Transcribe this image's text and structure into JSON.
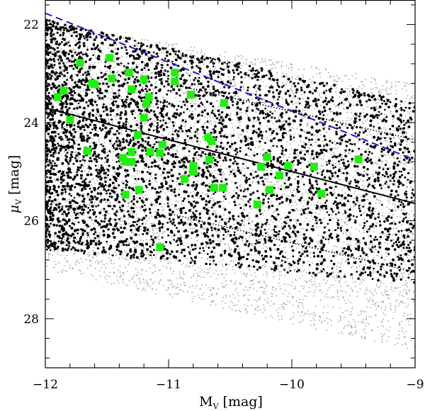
{
  "chart_data": {
    "type": "scatter",
    "title": "",
    "xlabel": "M",
    "xlabel_sub": "V",
    "xlabel_unit": " [mag]",
    "ylabel": "μ",
    "ylabel_sub": "V",
    "ylabel_unit": " [mag]",
    "xlim": [
      -12,
      -9
    ],
    "ylim": [
      29,
      21.5
    ],
    "y_inverted": true,
    "grid": false,
    "x_ticks": [
      -12,
      -11,
      -10,
      -9
    ],
    "x_tick_labels": [
      "−12",
      "−11",
      "−10",
      "−9"
    ],
    "y_ticks": [
      22,
      24,
      26,
      28
    ],
    "y_tick_labels": [
      "22",
      "24",
      "26",
      "28"
    ],
    "colors": {
      "model_grey": "#9a9a9a",
      "model_black": "#000000",
      "observed": "#22ee11",
      "dashed_line": "#1a1acc",
      "solid_line": "#000000"
    },
    "lines": [
      {
        "style": "dashed",
        "color": "#1a1acc",
        "x": [
          -12,
          -9
        ],
        "y": [
          21.77,
          24.76
        ]
      },
      {
        "style": "solid",
        "color": "#000000",
        "x": [
          -12,
          -9
        ],
        "y": [
          23.7,
          25.65
        ]
      },
      {
        "style": "dotted",
        "color": "#000000",
        "x": [
          -11,
          -9
        ],
        "y": [
          23.2,
          24.35
        ]
      },
      {
        "style": "dotted",
        "color": "#000000",
        "x": [
          -11,
          -9
        ],
        "y": [
          25.85,
          27.05
        ]
      }
    ],
    "model_regions": {
      "grey": {
        "x": [
          -12,
          -9
        ],
        "y_bright": [
          21.95,
          23.2
        ],
        "y_faint": [
          27.0,
          28.65
        ]
      },
      "black": {
        "x": [
          -12,
          -9
        ],
        "y_bright": [
          21.9,
          23.6
        ],
        "y_faint": [
          26.6,
          27.3
        ]
      }
    },
    "series": [
      {
        "marker": "square",
        "color": "#22ee11",
        "points": [
          [
            -11.72,
            22.78
          ],
          [
            -11.48,
            22.68
          ],
          [
            -11.62,
            23.2
          ],
          [
            -11.6,
            23.22
          ],
          [
            -11.46,
            23.1
          ],
          [
            -11.32,
            22.98
          ],
          [
            -11.2,
            23.12
          ],
          [
            -10.95,
            22.98
          ],
          [
            -10.95,
            23.16
          ],
          [
            -11.85,
            23.35
          ],
          [
            -11.9,
            23.48
          ],
          [
            -11.3,
            23.32
          ],
          [
            -11.16,
            23.48
          ],
          [
            -10.82,
            23.43
          ],
          [
            -11.18,
            23.62
          ],
          [
            -10.55,
            23.6
          ],
          [
            -11.8,
            23.95
          ],
          [
            -11.2,
            23.9
          ],
          [
            -11.25,
            24.25
          ],
          [
            -10.68,
            24.3
          ],
          [
            -10.65,
            24.38
          ],
          [
            -11.05,
            24.45
          ],
          [
            -11.66,
            24.58
          ],
          [
            -11.3,
            24.6
          ],
          [
            -11.15,
            24.6
          ],
          [
            -11.07,
            24.62
          ],
          [
            -11.37,
            24.72
          ],
          [
            -11.35,
            24.8
          ],
          [
            -11.3,
            24.8
          ],
          [
            -10.67,
            24.76
          ],
          [
            -10.8,
            24.88
          ],
          [
            -10.8,
            25.0
          ],
          [
            -10.2,
            24.7
          ],
          [
            -10.25,
            24.9
          ],
          [
            -10.03,
            24.88
          ],
          [
            -9.82,
            24.9
          ],
          [
            -9.46,
            24.75
          ],
          [
            -10.87,
            25.15
          ],
          [
            -10.1,
            25.08
          ],
          [
            -10.63,
            25.33
          ],
          [
            -10.56,
            25.33
          ],
          [
            -11.24,
            25.37
          ],
          [
            -10.18,
            25.37
          ],
          [
            -11.35,
            25.47
          ],
          [
            -9.76,
            25.45
          ],
          [
            -10.28,
            25.67
          ],
          [
            -11.07,
            26.54
          ]
        ]
      }
    ]
  }
}
